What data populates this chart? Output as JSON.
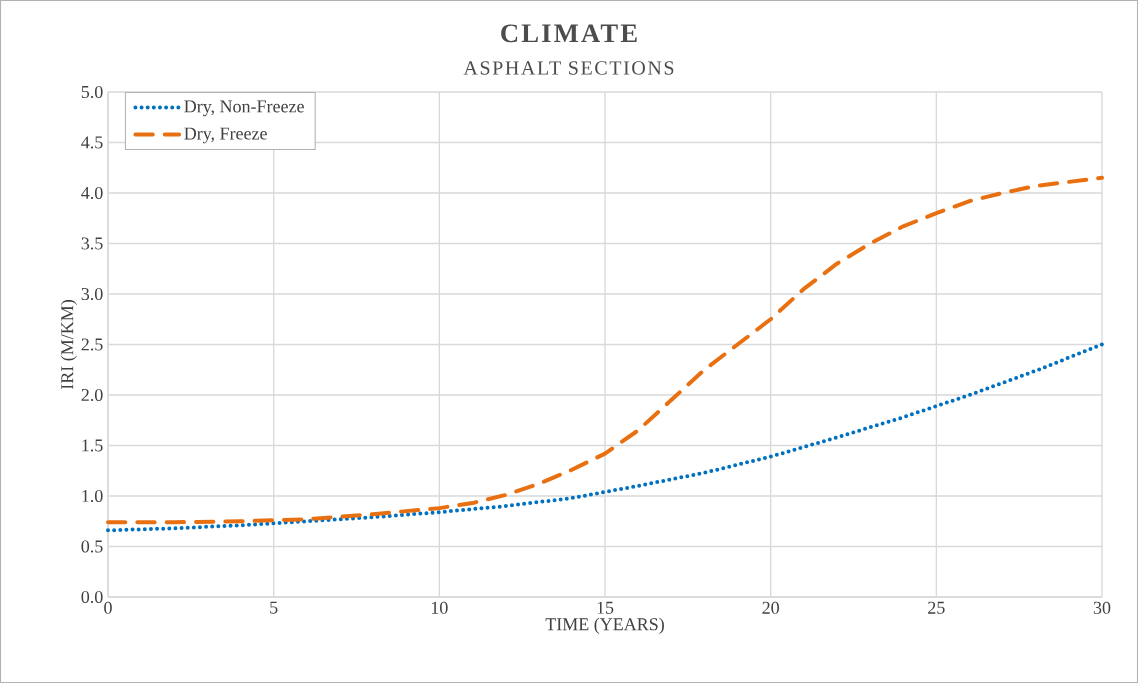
{
  "chart_data": {
    "type": "line",
    "title": "CLIMATE",
    "subtitle": "ASPHALT SECTIONS",
    "xlabel": "TIME (YEARS)",
    "ylabel": "IRI (M/KM)",
    "xlim": [
      0,
      30
    ],
    "ylim": [
      0,
      5
    ],
    "xticks": [
      0,
      5,
      10,
      15,
      20,
      25,
      30
    ],
    "yticks": [
      {
        "value": 0,
        "label": "0.0"
      },
      {
        "value": 0.5,
        "label": "0.5"
      },
      {
        "value": 1,
        "label": "1.0"
      },
      {
        "value": 1.5,
        "label": "1.5"
      },
      {
        "value": 2,
        "label": "2.0"
      },
      {
        "value": 2.5,
        "label": "2.5"
      },
      {
        "value": 3,
        "label": "3.0"
      },
      {
        "value": 3.5,
        "label": "3.5"
      },
      {
        "value": 4,
        "label": "4.0"
      },
      {
        "value": 4.5,
        "label": "4.5"
      },
      {
        "value": 5,
        "label": "5.0"
      }
    ],
    "grid": true,
    "legend": "top left",
    "marker": "none",
    "series": [
      {
        "name": "Dry, Non-Freeze",
        "color": "#0070c0",
        "line_style": "dotted",
        "x": [
          0,
          2,
          4,
          6,
          8,
          10,
          12,
          14,
          15,
          16,
          18,
          20,
          22,
          24,
          25,
          26,
          28,
          30
        ],
        "values": [
          0.66,
          0.68,
          0.71,
          0.75,
          0.79,
          0.84,
          0.9,
          0.98,
          1.04,
          1.1,
          1.23,
          1.39,
          1.58,
          1.78,
          1.89,
          2.0,
          2.24,
          2.5
        ]
      },
      {
        "name": "Dry, Freeze",
        "color": "#e97011",
        "line_style": "dashed",
        "x": [
          0,
          2,
          4,
          6,
          8,
          10,
          11,
          12,
          13,
          14,
          15,
          16,
          17,
          18,
          19,
          20,
          21,
          22,
          23,
          24,
          25,
          26,
          27,
          28,
          29,
          30
        ],
        "values": [
          0.74,
          0.74,
          0.75,
          0.77,
          0.82,
          0.88,
          0.93,
          1.01,
          1.12,
          1.26,
          1.42,
          1.65,
          1.95,
          2.25,
          2.5,
          2.75,
          3.05,
          3.3,
          3.5,
          3.67,
          3.8,
          3.92,
          4.0,
          4.07,
          4.11,
          4.15
        ]
      }
    ]
  }
}
